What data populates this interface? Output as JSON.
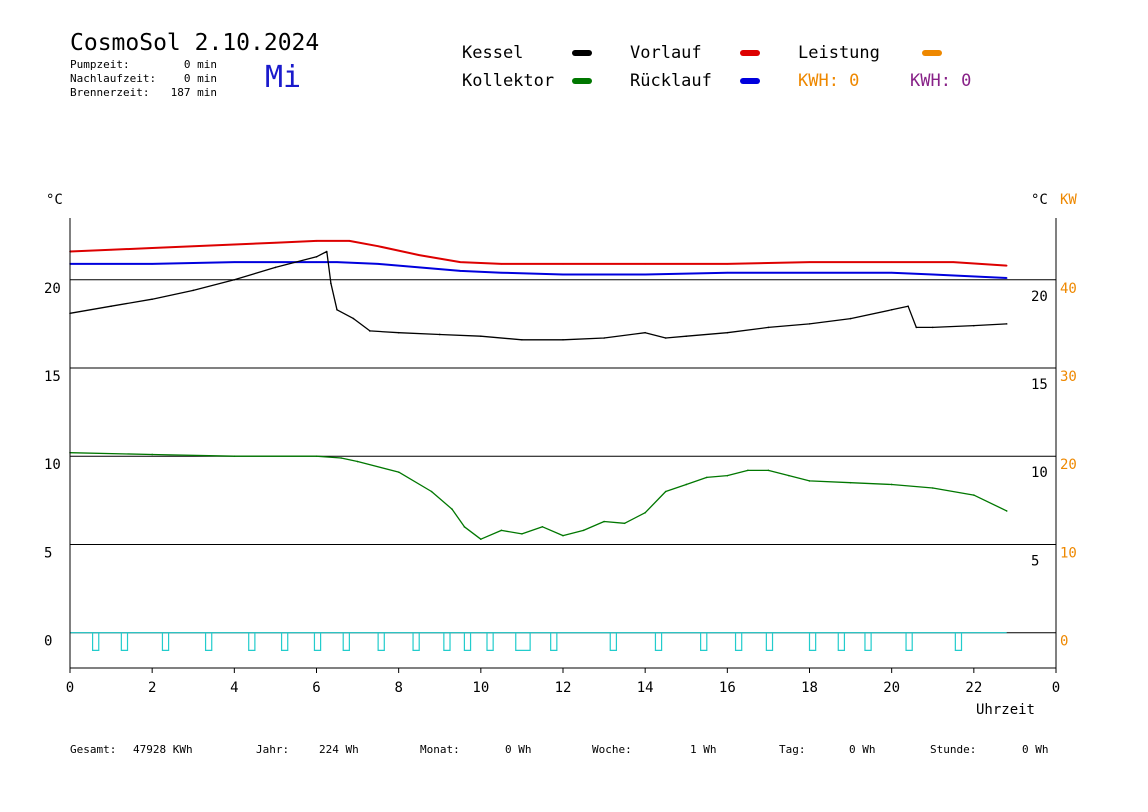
{
  "header": {
    "title": "CosmoSol 2.10.2024",
    "weekday": "Mi",
    "stats": [
      {
        "label": "Pumpzeit:",
        "value": "0 min"
      },
      {
        "label": "Nachlaufzeit:",
        "value": "0 min"
      },
      {
        "label": "Brennerzeit:",
        "value": "187 min"
      }
    ]
  },
  "legend": {
    "kessel": {
      "label": "Kessel",
      "color": "#000000"
    },
    "vorlauf": {
      "label": "Vorlauf",
      "color": "#dd0000"
    },
    "leistung": {
      "label": "Leistung",
      "color": "#ee8800"
    },
    "kollektor": {
      "label": "Kollektor",
      "color": "#007700"
    },
    "ruecklauf": {
      "label": "Rücklauf",
      "color": "#0000dd"
    },
    "kwh_orange": {
      "label": "KWH: 0",
      "color": "#ee8800"
    },
    "kwh_purple": {
      "label": "KWH: 0",
      "color": "#882288"
    }
  },
  "footer": [
    {
      "label": "Gesamt:",
      "value": "47928 KWh"
    },
    {
      "label": "Jahr:",
      "value": "224 Wh"
    },
    {
      "label": "Monat:",
      "value": "0 Wh"
    },
    {
      "label": "Woche:",
      "value": "1 Wh"
    },
    {
      "label": "Tag:",
      "value": "0 Wh"
    },
    {
      "label": "Stunde:",
      "value": "0 Wh"
    }
  ],
  "chart_data": {
    "type": "line",
    "xlabel": "Uhrzeit",
    "ylabel_left": "°C",
    "ylabel_right": "°C",
    "ylabel_right2": "KW",
    "x_ticks": [
      "0",
      "2",
      "4",
      "6",
      "8",
      "10",
      "12",
      "14",
      "16",
      "18",
      "20",
      "22",
      "0"
    ],
    "y_left_ticks": [
      "0",
      "5",
      "10",
      "15",
      "20"
    ],
    "y_right_ticks": [
      "5",
      "10",
      "15",
      "20"
    ],
    "y_right2_ticks": [
      "0",
      "10",
      "20",
      "30",
      "40"
    ],
    "xlim": [
      0,
      24
    ],
    "ylim": [
      -2,
      23.5
    ],
    "grid_y": [
      0,
      5,
      10,
      15,
      20
    ],
    "series": [
      {
        "name": "Vorlauf",
        "color": "#dd0000",
        "x": [
          0,
          1,
          2,
          3,
          4,
          5,
          6,
          6.8,
          7.5,
          8.5,
          9.5,
          10.5,
          12,
          14,
          16,
          18,
          20,
          21.5,
          22.8
        ],
        "y": [
          21.6,
          21.7,
          21.8,
          21.9,
          22.0,
          22.1,
          22.2,
          22.2,
          21.9,
          21.4,
          21.0,
          20.9,
          20.9,
          20.9,
          20.9,
          21.0,
          21.0,
          21.0,
          20.8
        ]
      },
      {
        "name": "Rücklauf",
        "color": "#0000dd",
        "x": [
          0,
          2,
          4,
          6,
          6.5,
          7.5,
          8.5,
          9.5,
          10.5,
          12,
          14,
          16,
          18,
          20,
          21,
          22.8
        ],
        "y": [
          20.9,
          20.9,
          21.0,
          21.0,
          21.0,
          20.9,
          20.7,
          20.5,
          20.4,
          20.3,
          20.3,
          20.4,
          20.4,
          20.4,
          20.3,
          20.1
        ]
      },
      {
        "name": "Kessel",
        "color": "#000000",
        "x": [
          0,
          1,
          2,
          3,
          4,
          5,
          6,
          6.25,
          6.35,
          6.5,
          6.9,
          7.3,
          8,
          9,
          10,
          11,
          12,
          13,
          14,
          14.5,
          15,
          16,
          17,
          18,
          19,
          20,
          20.4,
          20.6,
          21,
          22,
          22.8
        ],
        "y": [
          18.1,
          18.5,
          18.9,
          19.4,
          20.0,
          20.7,
          21.3,
          21.6,
          19.8,
          18.3,
          17.8,
          17.1,
          17.0,
          16.9,
          16.8,
          16.6,
          16.6,
          16.7,
          17.0,
          16.7,
          16.8,
          17.0,
          17.3,
          17.5,
          17.8,
          18.3,
          18.5,
          17.3,
          17.3,
          17.4,
          17.5
        ]
      },
      {
        "name": "Kollektor",
        "color": "#007700",
        "x": [
          0,
          2,
          4,
          6,
          6.6,
          7,
          8,
          8.8,
          9.3,
          9.6,
          10,
          10.5,
          11,
          11.5,
          12,
          12.5,
          13,
          13.5,
          14,
          14.5,
          15,
          15.5,
          16,
          16.5,
          17,
          17.5,
          18,
          19,
          20,
          21,
          22,
          22.8
        ],
        "y": [
          10.2,
          10.1,
          10.0,
          10.0,
          9.9,
          9.7,
          9.1,
          8.0,
          7.0,
          6.0,
          5.3,
          5.8,
          5.6,
          6.0,
          5.5,
          5.8,
          6.3,
          6.2,
          6.8,
          8.0,
          8.4,
          8.8,
          8.9,
          9.2,
          9.2,
          8.9,
          8.6,
          8.5,
          8.4,
          8.2,
          7.8,
          6.9
        ]
      },
      {
        "name": "Pumpe",
        "color": "#22cccc",
        "pulses": [
          0.55,
          1.25,
          2.25,
          3.3,
          4.35,
          5.15,
          5.95,
          6.65,
          7.5,
          8.35,
          9.1,
          9.6,
          10.15,
          10.85,
          11.7,
          13.15,
          14.25,
          15.35,
          16.2,
          16.95,
          18.0,
          18.7,
          19.35,
          20.35,
          21.55
        ],
        "pulse_widths": [
          0.15,
          0.15,
          0.15,
          0.15,
          0.15,
          0.15,
          0.15,
          0.15,
          0.15,
          0.15,
          0.15,
          0.15,
          0.15,
          0.35,
          0.15,
          0.15,
          0.15,
          0.15,
          0.15,
          0.15,
          0.15,
          0.15,
          0.15,
          0.15,
          0.15
        ],
        "low": -1.0,
        "high": 0.0
      }
    ]
  }
}
